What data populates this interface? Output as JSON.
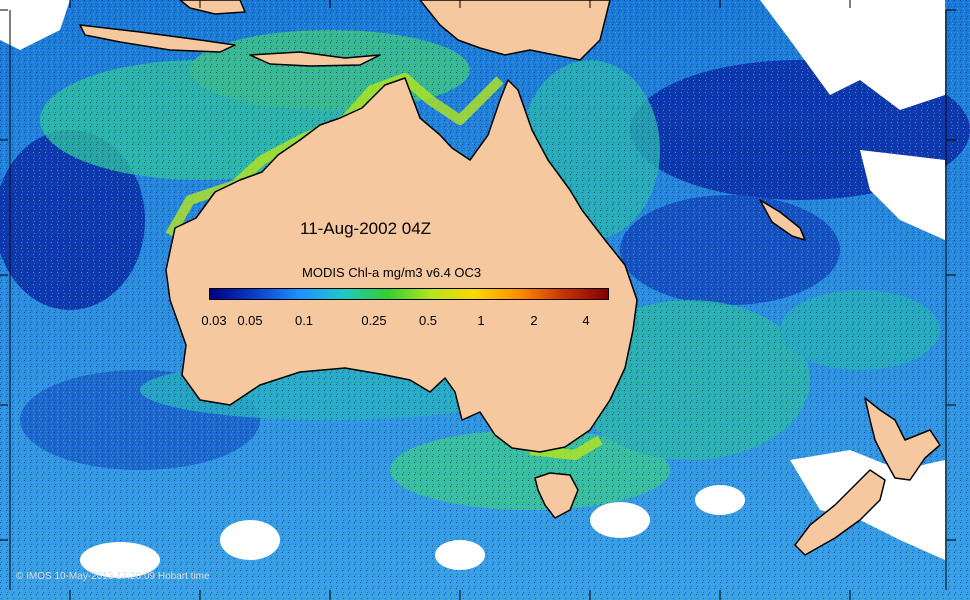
{
  "map": {
    "title": "11-Aug-2002 04Z",
    "legend": {
      "title": "MODIS Chl-a mg/m3 v6.4 OC3",
      "ticks": [
        "0.03",
        "0.05",
        "0.1",
        "0.25",
        "0.5",
        "1",
        "2",
        "4"
      ],
      "colors": [
        "#000080",
        "#0a3cc8",
        "#1e90ff",
        "#20c8c8",
        "#32cd32",
        "#b4e61e",
        "#ffd700",
        "#ff8c00",
        "#c83200",
        "#800000"
      ]
    },
    "copyright": "© IMOS 10-May-2013 17:20:09 Hobart time",
    "land_color": "#f5c8a0",
    "no_data_color": "#ffffff"
  }
}
